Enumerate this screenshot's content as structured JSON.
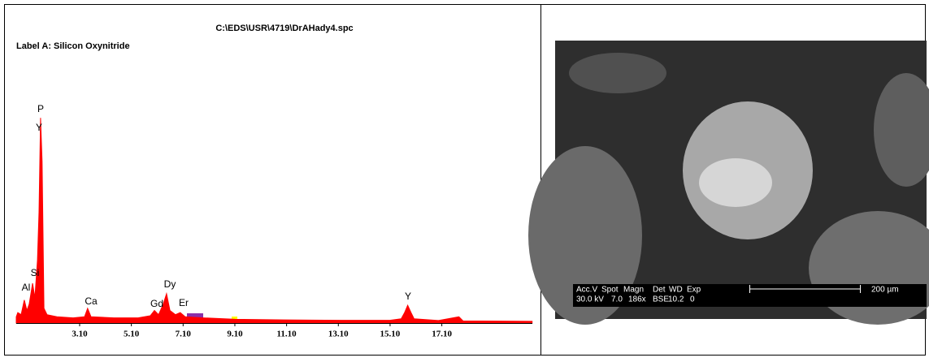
{
  "chart_data": {
    "type": "area",
    "title": "C:\\EDS\\USR\\4719\\DrAHady4.spc",
    "subtitle": "Label A: Silicon Oxynitride",
    "annotations": [
      "P",
      "Y",
      "Si",
      "Al",
      "Ca",
      "Gd",
      "Dy",
      "Er",
      "Y"
    ],
    "x": [
      0.65,
      0.71,
      0.84,
      0.96,
      1.06,
      1.15,
      1.28,
      1.37,
      1.47,
      1.53,
      1.59,
      1.65,
      1.72,
      1.84,
      2.22,
      2.85,
      3.29,
      3.41,
      3.54,
      4.42,
      5.36,
      5.83,
      5.99,
      6.15,
      6.33,
      6.46,
      6.59,
      6.8,
      6.99,
      7.18,
      7.87,
      9.13,
      11.01,
      13.21,
      15.09,
      15.53,
      15.66,
      15.78,
      15.91,
      16.03,
      16.97,
      17.76,
      17.92,
      20.59
    ],
    "values": [
      3,
      5,
      4,
      11,
      6,
      9,
      19,
      12,
      30,
      53,
      98,
      77,
      7,
      4,
      3,
      2.5,
      3,
      7,
      3,
      2.5,
      2.5,
      3.5,
      6,
      4,
      9,
      14,
      6,
      4,
      5,
      3,
      2.5,
      1.8,
      1.5,
      1.3,
      1.3,
      2,
      5,
      8.5,
      5,
      2,
      1.2,
      3,
      1,
      0.8
    ],
    "color": "#ff0000",
    "xlim": [
      0.65,
      20.6
    ],
    "ylim": [
      0,
      100
    ],
    "xticks": [
      {
        "value": 3.1,
        "label": "3.10"
      },
      {
        "value": 5.1,
        "label": "5.10"
      },
      {
        "value": 7.1,
        "label": "7.10"
      },
      {
        "value": 9.1,
        "label": "9.10"
      },
      {
        "value": 11.1,
        "label": "11.10"
      },
      {
        "value": 13.1,
        "label": "13.10"
      },
      {
        "value": 15.1,
        "label": "15.10"
      },
      {
        "value": 17.1,
        "label": "17.10"
      }
    ]
  },
  "micrograph": {
    "header": [
      "Acc.V",
      "Spot",
      "Magn",
      "Det",
      "WD",
      "Exp"
    ],
    "row": [
      "30.0 kV",
      "7.0",
      "186x",
      "BSE",
      "10.2",
      "0"
    ],
    "scale_bar": "200 µm"
  }
}
